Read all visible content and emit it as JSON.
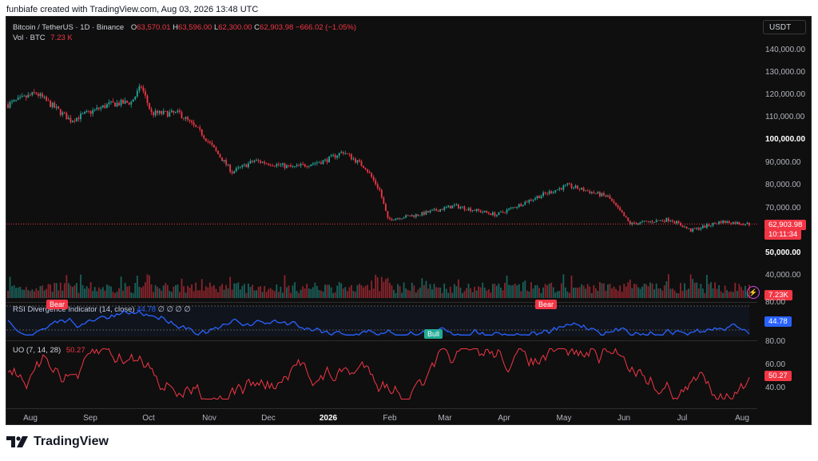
{
  "header": {
    "created_by": "funbiafe created with TradingView.com, Aug 03, 2026 13:48 UTC"
  },
  "legend": {
    "symbol": "Bitcoin / TetherUS · 1D · Binance",
    "o_label": "O",
    "o": "63,570.01",
    "h_label": "H",
    "h": "63,596.00",
    "l_label": "L",
    "l": "62,300.00",
    "c_label": "C",
    "c": "62,903.98",
    "change": "−666.02 (−1.05%)",
    "vol_label": "Vol · BTC",
    "vol": "7.23 K",
    "rsi_label": "RSI Divergence Indicator (14, close)",
    "rsi_value": "44.78",
    "rsi_na": "∅ ∅ ∅ ∅",
    "uo_label": "UO (7, 14, 28)",
    "uo_value": "50.27"
  },
  "currency_button": "USDT",
  "price_axis": [
    "140,000.00",
    "130,000.00",
    "120,000.00",
    "110,000.00",
    "100,000.00",
    "90,000.00",
    "80,000.00",
    "70,000.00",
    "50,000.00",
    "40,000.00"
  ],
  "price_tag": "62,903.98",
  "countdown": "10:11:34",
  "vol_tag": "7.23K",
  "rsi_axis": [
    "80.00",
    "44.78"
  ],
  "uo_axis": [
    "80.00",
    "60.00",
    "40.00"
  ],
  "uo_tag": "50.27",
  "x_axis": [
    "Aug",
    "Sep",
    "Oct",
    "Nov",
    "Dec",
    "2026",
    "Feb",
    "Mar",
    "Apr",
    "May",
    "Jun",
    "Jul",
    "Aug"
  ],
  "badges": {
    "bear1": "Bear",
    "bear2": "Bear",
    "bull": "Bull"
  },
  "brand": "TradingView",
  "colors": {
    "up": "#26a69a",
    "down": "#f23645",
    "rsi": "#2962ff",
    "uo": "#f23645",
    "background": "#0f0f0f"
  },
  "chart_data": [
    {
      "type": "candlestick",
      "title": "Bitcoin / TetherUS · 1D · Binance",
      "x_range": [
        "2025-08-01",
        "2026-08-03"
      ],
      "ylim": [
        40000,
        145000
      ],
      "close_approx": [
        {
          "date": "2025-08-01",
          "close": 116000
        },
        {
          "date": "2025-08-15",
          "close": 121000
        },
        {
          "date": "2025-09-01",
          "close": 109000
        },
        {
          "date": "2025-09-20",
          "close": 116000
        },
        {
          "date": "2025-10-01",
          "close": 117000
        },
        {
          "date": "2025-10-06",
          "close": 124000
        },
        {
          "date": "2025-10-11",
          "close": 112000
        },
        {
          "date": "2025-10-25",
          "close": 112000
        },
        {
          "date": "2025-11-05",
          "close": 103000
        },
        {
          "date": "2025-11-20",
          "close": 86000
        },
        {
          "date": "2025-12-01",
          "close": 91000
        },
        {
          "date": "2025-12-20",
          "close": 88000
        },
        {
          "date": "2026-01-05",
          "close": 91000
        },
        {
          "date": "2026-01-14",
          "close": 95000
        },
        {
          "date": "2026-01-25",
          "close": 88000
        },
        {
          "date": "2026-02-01",
          "close": 78000
        },
        {
          "date": "2026-02-05",
          "close": 65000
        },
        {
          "date": "2026-02-20",
          "close": 67000
        },
        {
          "date": "2026-03-10",
          "close": 71000
        },
        {
          "date": "2026-03-31",
          "close": 67000
        },
        {
          "date": "2026-04-20",
          "close": 75000
        },
        {
          "date": "2026-05-05",
          "close": 80000
        },
        {
          "date": "2026-05-25",
          "close": 75000
        },
        {
          "date": "2026-06-05",
          "close": 63000
        },
        {
          "date": "2026-06-25",
          "close": 65000
        },
        {
          "date": "2026-07-05",
          "close": 60000
        },
        {
          "date": "2026-07-20",
          "close": 64000
        },
        {
          "date": "2026-08-03",
          "close": 62903.98
        }
      ],
      "last": {
        "open": 63570.01,
        "high": 63596.0,
        "low": 62300.0,
        "close": 62903.98,
        "change": -666.02,
        "change_pct": -1.05
      }
    },
    {
      "type": "bar",
      "title": "Vol · BTC",
      "last_value": "7.23K"
    },
    {
      "type": "line",
      "title": "RSI Divergence Indicator (14, close)",
      "ylim": [
        25,
        80
      ],
      "last_value": 44.78,
      "labels": [
        "Bear",
        "Bear",
        "Bull"
      ]
    },
    {
      "type": "line",
      "title": "UO (7, 14, 28)",
      "ylim": [
        30,
        80
      ],
      "last_value": 50.27
    }
  ]
}
